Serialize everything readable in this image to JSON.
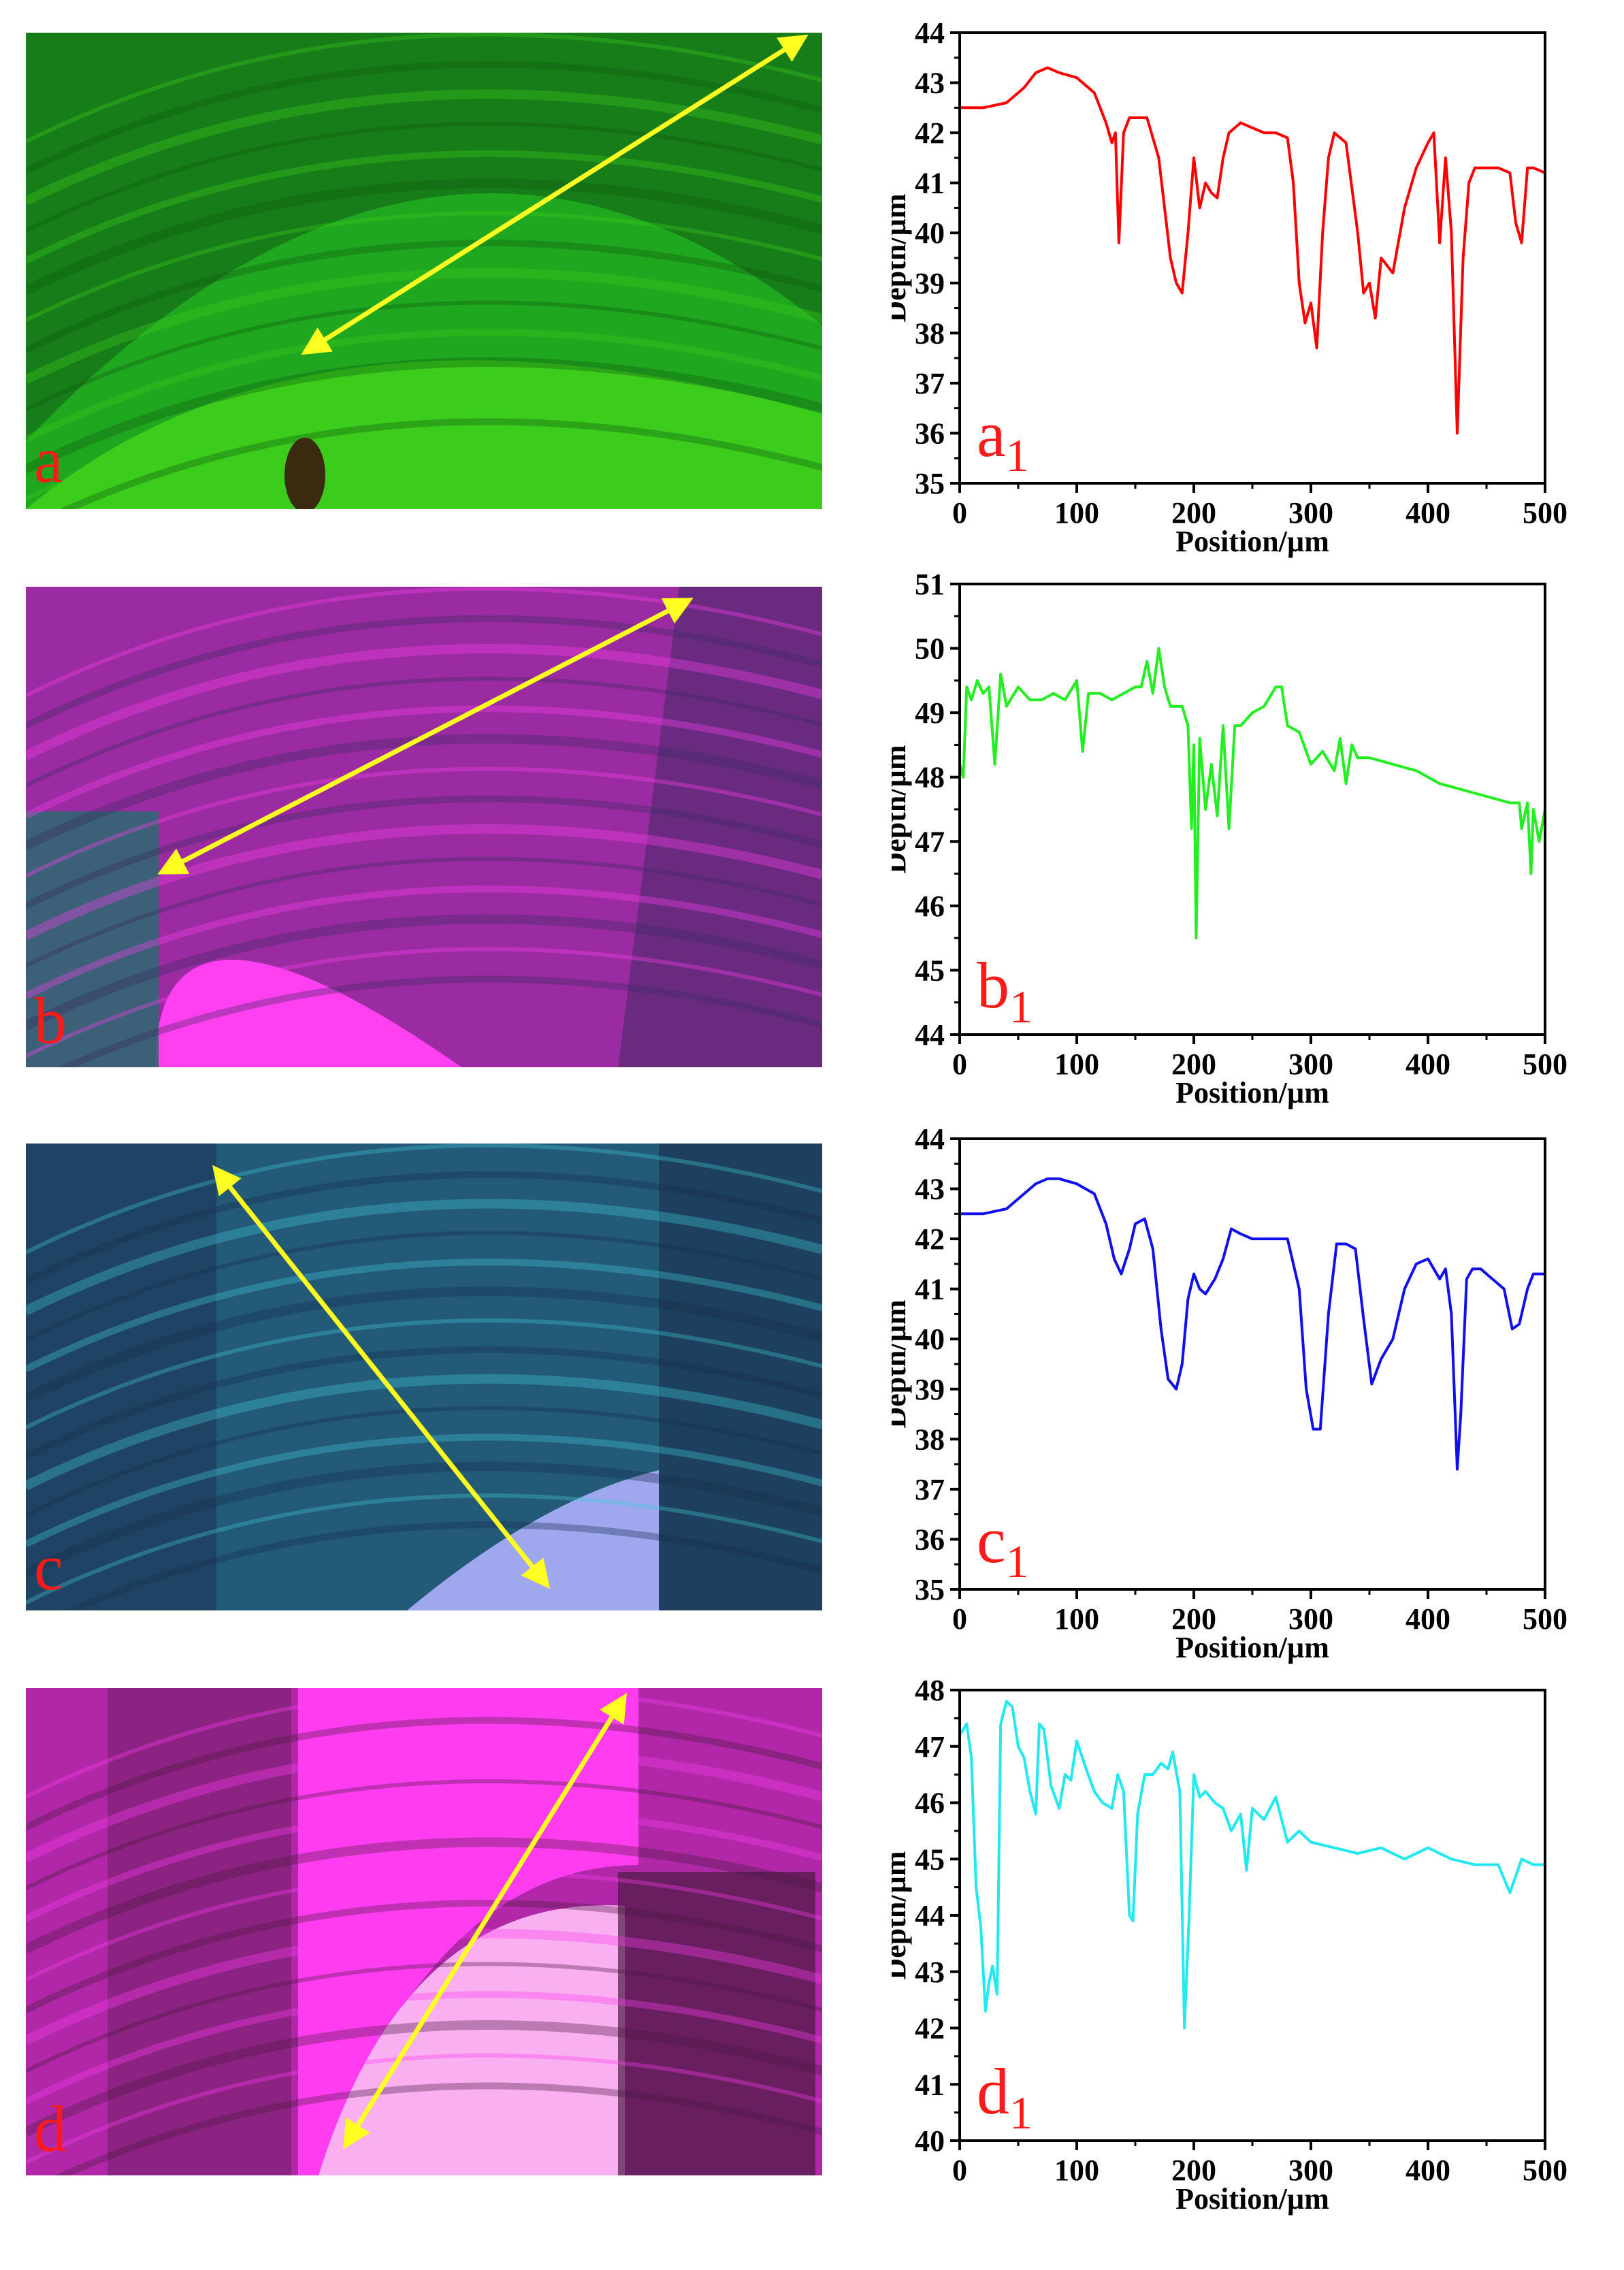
{
  "panels": [
    {
      "id": "a",
      "letter": "a",
      "colors": {
        "base": "#1fa81f",
        "dark": "#0f5a12",
        "light": "#3ccc1c",
        "spot": "#3a2a10"
      }
    },
    {
      "id": "b",
      "letter": "b",
      "colors": {
        "base": "#9a2ba0",
        "dark": "#3a2a60",
        "light": "#ff40f0",
        "spot": "#2a6a70"
      }
    },
    {
      "id": "c",
      "letter": "c",
      "colors": {
        "base": "#235a78",
        "dark": "#1a2b4a",
        "light": "#40c8d8",
        "spot": "#9fa8ef"
      }
    },
    {
      "id": "d",
      "letter": "d",
      "colors": {
        "base": "#b028a8",
        "dark": "#4a1a40",
        "light": "#ff3cf0",
        "spot": "#f8b0f0"
      }
    }
  ],
  "arrow_color": "#ffff22",
  "chart_data": [
    {
      "type": "line",
      "tag_main": "a",
      "tag_sub": "1",
      "color": "#ff0000",
      "xlabel": "Position/µm",
      "ylabel": "Depth/µm",
      "xlim": [
        0,
        500
      ],
      "ylim": [
        35,
        44
      ],
      "xticks": [
        "0",
        "100",
        "200",
        "300",
        "400",
        "500"
      ],
      "yticks": [
        "35",
        "36",
        "37",
        "38",
        "39",
        "40",
        "41",
        "42",
        "43",
        "44"
      ],
      "series": [
        {
          "x": [
            0,
            20,
            40,
            55,
            65,
            75,
            85,
            100,
            115,
            125,
            130,
            133,
            136,
            140,
            145,
            150,
            160,
            170,
            175,
            180,
            185,
            190,
            195,
            200,
            205,
            210,
            215,
            220,
            225,
            230,
            240,
            250,
            260,
            270,
            280,
            285,
            290,
            295,
            300,
            305,
            310,
            315,
            320,
            330,
            340,
            345,
            350,
            355,
            360,
            370,
            380,
            390,
            400,
            405,
            410,
            415,
            420,
            425,
            430,
            435,
            440,
            450,
            460,
            470,
            475,
            480,
            485,
            490,
            500
          ],
          "y": [
            42.5,
            42.5,
            42.6,
            42.9,
            43.2,
            43.3,
            43.2,
            43.1,
            42.8,
            42.2,
            41.8,
            42.0,
            39.8,
            42.0,
            42.3,
            42.3,
            42.3,
            41.5,
            40.5,
            39.5,
            39.0,
            38.8,
            40.0,
            41.5,
            40.5,
            41.0,
            40.8,
            40.7,
            41.5,
            42.0,
            42.2,
            42.1,
            42.0,
            42.0,
            41.9,
            41.0,
            39.0,
            38.2,
            38.6,
            37.7,
            40.0,
            41.5,
            42.0,
            41.8,
            40.0,
            38.8,
            39.0,
            38.3,
            39.5,
            39.2,
            40.5,
            41.3,
            41.8,
            42.0,
            39.8,
            41.5,
            40.0,
            36.0,
            39.5,
            41.0,
            41.3,
            41.3,
            41.3,
            41.2,
            40.2,
            39.8,
            41.3,
            41.3,
            41.2
          ]
        }
      ]
    },
    {
      "type": "line",
      "tag_main": "b",
      "tag_sub": "1",
      "color": "#22ee22",
      "xlabel": "Position/µm",
      "ylabel": "Depth/µm",
      "xlim": [
        0,
        500
      ],
      "ylim": [
        44,
        51
      ],
      "xticks": [
        "0",
        "100",
        "200",
        "300",
        "400",
        "500"
      ],
      "yticks": [
        "44",
        "45",
        "46",
        "47",
        "48",
        "49",
        "50",
        "51"
      ],
      "series": [
        {
          "x": [
            0,
            3,
            6,
            10,
            15,
            20,
            25,
            30,
            35,
            40,
            50,
            60,
            70,
            80,
            90,
            100,
            105,
            110,
            120,
            130,
            140,
            150,
            155,
            160,
            165,
            170,
            175,
            180,
            190,
            195,
            198,
            200,
            202,
            205,
            210,
            215,
            220,
            225,
            230,
            235,
            240,
            250,
            260,
            270,
            275,
            280,
            290,
            300,
            310,
            320,
            325,
            330,
            335,
            340,
            350,
            370,
            390,
            410,
            430,
            450,
            470,
            478,
            480,
            485,
            488,
            490,
            495,
            500
          ],
          "y": [
            48.2,
            48.0,
            49.4,
            49.2,
            49.5,
            49.3,
            49.4,
            48.2,
            49.6,
            49.1,
            49.4,
            49.2,
            49.2,
            49.3,
            49.2,
            49.5,
            48.4,
            49.3,
            49.3,
            49.2,
            49.3,
            49.4,
            49.4,
            49.8,
            49.3,
            50.0,
            49.4,
            49.1,
            49.1,
            48.8,
            47.2,
            48.5,
            45.5,
            48.6,
            47.5,
            48.2,
            47.4,
            48.8,
            47.2,
            48.8,
            48.8,
            49.0,
            49.1,
            49.4,
            49.4,
            48.8,
            48.7,
            48.2,
            48.4,
            48.1,
            48.6,
            47.9,
            48.5,
            48.3,
            48.3,
            48.2,
            48.1,
            47.9,
            47.8,
            47.7,
            47.6,
            47.6,
            47.2,
            47.6,
            46.5,
            47.5,
            47.0,
            47.5
          ]
        }
      ]
    },
    {
      "type": "line",
      "tag_main": "c",
      "tag_sub": "1",
      "color": "#1010ee",
      "xlabel": "Position/µm",
      "ylabel": "Depth/µm",
      "xlim": [
        0,
        500
      ],
      "ylim": [
        35,
        44
      ],
      "xticks": [
        "0",
        "100",
        "200",
        "300",
        "400",
        "500"
      ],
      "yticks": [
        "35",
        "36",
        "37",
        "38",
        "39",
        "40",
        "41",
        "42",
        "43",
        "44"
      ],
      "series": [
        {
          "x": [
            0,
            20,
            40,
            55,
            65,
            75,
            85,
            100,
            115,
            125,
            132,
            138,
            145,
            150,
            158,
            165,
            172,
            178,
            185,
            190,
            195,
            200,
            205,
            210,
            218,
            225,
            232,
            240,
            250,
            265,
            280,
            290,
            296,
            302,
            308,
            315,
            322,
            330,
            338,
            345,
            352,
            360,
            370,
            380,
            390,
            400,
            410,
            415,
            420,
            425,
            428,
            433,
            438,
            445,
            455,
            465,
            472,
            478,
            485,
            490,
            500
          ],
          "y": [
            42.5,
            42.5,
            42.6,
            42.9,
            43.1,
            43.2,
            43.2,
            43.1,
            42.9,
            42.3,
            41.6,
            41.3,
            41.8,
            42.3,
            42.4,
            41.8,
            40.2,
            39.2,
            39.0,
            39.5,
            40.8,
            41.3,
            41.0,
            40.9,
            41.2,
            41.6,
            42.2,
            42.1,
            42.0,
            42.0,
            42.0,
            41.0,
            39.0,
            38.2,
            38.2,
            40.5,
            41.9,
            41.9,
            41.8,
            40.4,
            39.1,
            39.6,
            40.0,
            41.0,
            41.5,
            41.6,
            41.2,
            41.4,
            40.5,
            37.4,
            38.5,
            41.2,
            41.4,
            41.4,
            41.2,
            41.0,
            40.2,
            40.3,
            41.0,
            41.3,
            41.3
          ]
        }
      ]
    },
    {
      "type": "line",
      "tag_main": "d",
      "tag_sub": "1",
      "color": "#22e8f0",
      "xlabel": "Position/µm",
      "ylabel": "Depth/µm",
      "xlim": [
        0,
        500
      ],
      "ylim": [
        40,
        48
      ],
      "xticks": [
        "0",
        "100",
        "200",
        "300",
        "400",
        "500"
      ],
      "yticks": [
        "40",
        "41",
        "42",
        "43",
        "44",
        "45",
        "46",
        "47",
        "48"
      ],
      "series": [
        {
          "x": [
            0,
            3,
            6,
            10,
            14,
            18,
            22,
            25,
            28,
            32,
            35,
            40,
            45,
            50,
            55,
            60,
            65,
            68,
            72,
            78,
            85,
            90,
            95,
            100,
            108,
            115,
            122,
            130,
            135,
            140,
            145,
            148,
            152,
            158,
            165,
            172,
            178,
            182,
            188,
            192,
            196,
            200,
            205,
            210,
            218,
            225,
            232,
            240,
            245,
            250,
            260,
            270,
            280,
            290,
            300,
            320,
            340,
            360,
            380,
            400,
            420,
            440,
            460,
            470,
            475,
            480,
            490,
            500
          ],
          "y": [
            47.2,
            47.3,
            47.4,
            46.8,
            44.5,
            43.8,
            42.3,
            42.8,
            43.1,
            42.6,
            47.4,
            47.8,
            47.7,
            47.0,
            46.8,
            46.2,
            45.8,
            47.4,
            47.3,
            46.3,
            45.9,
            46.5,
            46.4,
            47.1,
            46.6,
            46.2,
            46.0,
            45.9,
            46.5,
            46.2,
            44.0,
            43.9,
            45.8,
            46.5,
            46.5,
            46.7,
            46.6,
            46.9,
            46.2,
            42.0,
            44.0,
            46.5,
            46.1,
            46.2,
            46.0,
            45.9,
            45.5,
            45.8,
            44.8,
            45.9,
            45.7,
            46.1,
            45.3,
            45.5,
            45.3,
            45.2,
            45.1,
            45.2,
            45.0,
            45.2,
            45.0,
            44.9,
            44.9,
            44.4,
            44.7,
            45.0,
            44.9,
            44.9
          ]
        }
      ]
    }
  ]
}
